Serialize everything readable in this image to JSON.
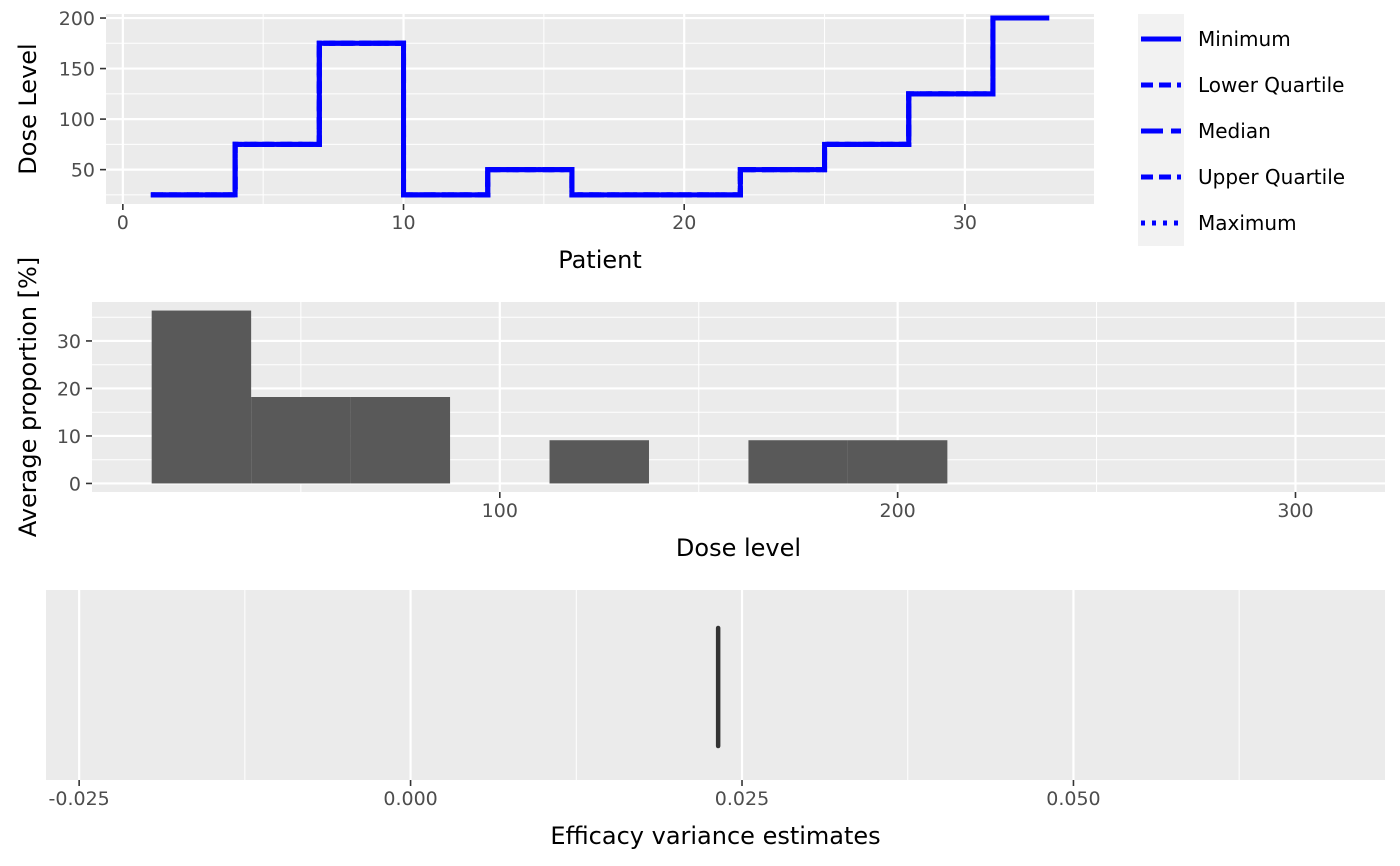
{
  "chart_data": [
    {
      "type": "line",
      "xlabel": "Patient",
      "ylabel": "Dose Level",
      "xlim": [
        -0.6,
        34.6
      ],
      "ylim": [
        16,
        204
      ],
      "xticks": [
        0,
        10,
        20,
        30
      ],
      "yticks": [
        50,
        100,
        150,
        200
      ],
      "line_color": "#0000ff",
      "legend_position": "right",
      "series": [
        {
          "name": "Minimum",
          "line_style": "solid",
          "x": [
            1,
            2,
            3,
            4,
            5,
            6,
            7,
            8,
            9,
            10,
            11,
            12,
            13,
            14,
            15,
            16,
            17,
            18,
            19,
            20,
            21,
            22,
            23,
            24,
            25,
            26,
            27,
            28,
            29,
            30,
            31,
            32,
            33
          ],
          "y": [
            25,
            25,
            25,
            75,
            75,
            75,
            175,
            175,
            175,
            25,
            25,
            25,
            50,
            50,
            50,
            25,
            25,
            25,
            25,
            25,
            25,
            50,
            50,
            50,
            75,
            75,
            75,
            125,
            125,
            125,
            200,
            200,
            200
          ]
        },
        {
          "name": "Lower Quartile",
          "line_style": "dashed",
          "x": [
            1,
            2,
            3,
            4,
            5,
            6,
            7,
            8,
            9,
            10,
            11,
            12,
            13,
            14,
            15,
            16,
            17,
            18,
            19,
            20,
            21,
            22,
            23,
            24,
            25,
            26,
            27,
            28,
            29,
            30,
            31,
            32,
            33
          ],
          "y": [
            25,
            25,
            25,
            75,
            75,
            75,
            175,
            175,
            175,
            25,
            25,
            25,
            50,
            50,
            50,
            25,
            25,
            25,
            25,
            25,
            25,
            50,
            50,
            50,
            75,
            75,
            75,
            125,
            125,
            125,
            200,
            200,
            200
          ]
        },
        {
          "name": "Median",
          "line_style": "longdash",
          "x": [
            1,
            2,
            3,
            4,
            5,
            6,
            7,
            8,
            9,
            10,
            11,
            12,
            13,
            14,
            15,
            16,
            17,
            18,
            19,
            20,
            21,
            22,
            23,
            24,
            25,
            26,
            27,
            28,
            29,
            30,
            31,
            32,
            33
          ],
          "y": [
            25,
            25,
            25,
            75,
            75,
            75,
            175,
            175,
            175,
            25,
            25,
            25,
            50,
            50,
            50,
            25,
            25,
            25,
            25,
            25,
            25,
            50,
            50,
            50,
            75,
            75,
            75,
            125,
            125,
            125,
            200,
            200,
            200
          ]
        },
        {
          "name": "Upper Quartile",
          "line_style": "dashed",
          "x": [
            1,
            2,
            3,
            4,
            5,
            6,
            7,
            8,
            9,
            10,
            11,
            12,
            13,
            14,
            15,
            16,
            17,
            18,
            19,
            20,
            21,
            22,
            23,
            24,
            25,
            26,
            27,
            28,
            29,
            30,
            31,
            32,
            33
          ],
          "y": [
            25,
            25,
            25,
            75,
            75,
            75,
            175,
            175,
            175,
            25,
            25,
            25,
            50,
            50,
            50,
            25,
            25,
            25,
            25,
            25,
            25,
            50,
            50,
            50,
            75,
            75,
            75,
            125,
            125,
            125,
            200,
            200,
            200
          ]
        },
        {
          "name": "Maximum",
          "line_style": "dotted",
          "x": [
            1,
            2,
            3,
            4,
            5,
            6,
            7,
            8,
            9,
            10,
            11,
            12,
            13,
            14,
            15,
            16,
            17,
            18,
            19,
            20,
            21,
            22,
            23,
            24,
            25,
            26,
            27,
            28,
            29,
            30,
            31,
            32,
            33
          ],
          "y": [
            25,
            25,
            25,
            75,
            75,
            75,
            175,
            175,
            175,
            25,
            25,
            25,
            50,
            50,
            50,
            25,
            25,
            25,
            25,
            25,
            25,
            50,
            50,
            50,
            75,
            75,
            75,
            125,
            125,
            125,
            200,
            200,
            200
          ]
        }
      ]
    },
    {
      "type": "bar",
      "xlabel": "Dose level",
      "ylabel": "Average proportion [%]",
      "xlim": [
        -2.5,
        322.5
      ],
      "ylim": [
        -1.8,
        38.2
      ],
      "xticks": [
        100,
        200,
        300
      ],
      "yticks": [
        0,
        10,
        20,
        30
      ],
      "bar_color": "#595959",
      "bar_width": 12.5,
      "bars": [
        {
          "x": 25,
          "value": 36.4
        },
        {
          "x": 50,
          "value": 18.2
        },
        {
          "x": 75,
          "value": 18.2
        },
        {
          "x": 125,
          "value": 9.1
        },
        {
          "x": 175,
          "value": 9.1
        },
        {
          "x": 200,
          "value": 9.1
        }
      ]
    },
    {
      "type": "boxplot",
      "xlabel": "Efficacy variance estimates",
      "ylabel": "",
      "xlim": [
        -0.0275,
        0.0735
      ],
      "xticks": [
        -0.025,
        0.0,
        0.025,
        0.05
      ],
      "xtick_labels": [
        "-0.025",
        "0.000",
        "0.025",
        "0.050"
      ],
      "box_color": "#333333",
      "value": 0.0232
    }
  ]
}
